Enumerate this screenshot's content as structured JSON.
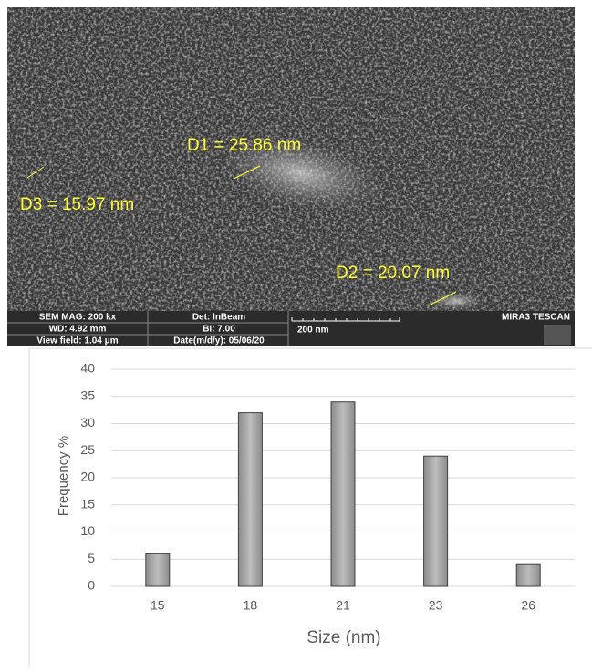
{
  "image": {
    "annotations": [
      "D1 = 25.86 nm",
      "D3 = 15.97 nm",
      "D2 = 20.07 nm"
    ],
    "info": {
      "mag": "SEM MAG: 200 kx",
      "wd": "WD: 4.92 mm",
      "view_field": "View field: 1.04 μm",
      "det": "Det: InBeam",
      "bi": "BI: 7.00",
      "date": "Date(m/d/y): 05/06/20",
      "scale": "200 nm",
      "brand": "MIRA3 TESCAN"
    }
  },
  "chart_data": {
    "type": "bar",
    "categories": [
      "15",
      "18",
      "21",
      "23",
      "26"
    ],
    "values": [
      6,
      32,
      34,
      24,
      4
    ],
    "color": "#a6a6a6",
    "x_label": "Size (nm)",
    "y_label": "Frequency %",
    "ylim": [
      0,
      40
    ],
    "yticks": [
      0,
      5,
      10,
      15,
      20,
      25,
      30,
      35,
      40
    ],
    "grid": true
  }
}
